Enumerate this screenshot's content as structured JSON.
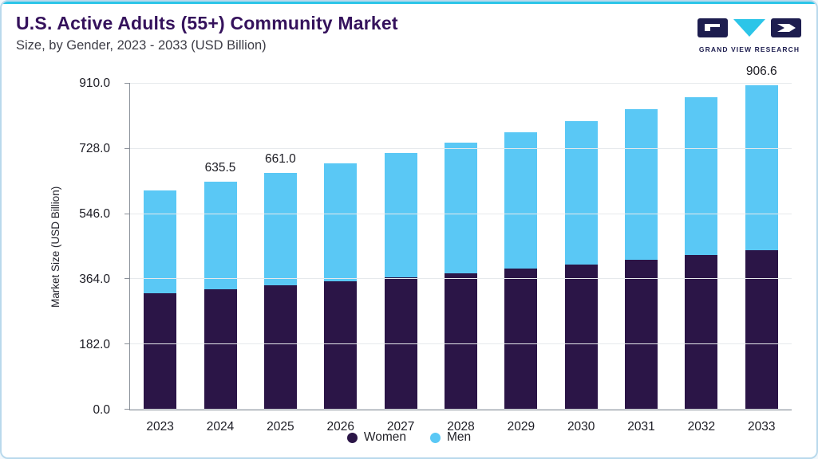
{
  "header": {
    "title": "U.S. Active Adults (55+) Community Market",
    "subtitle": "Size, by Gender, 2023 - 2033 (USD Billion)",
    "logo_text": "GRAND VIEW RESEARCH"
  },
  "colors": {
    "accent_line": "#2cc5e8",
    "card_border": "#b9d9ec",
    "title_text": "#35125c",
    "women_bar": "#2b1547",
    "men_bar": "#5ac8f5"
  },
  "chart_data": {
    "type": "bar",
    "stacked": true,
    "title": "U.S. Active Adults (55+) Community Market Size, by Gender, 2023 - 2033 (USD Billion)",
    "xlabel": "",
    "ylabel": "Market Size (USD Billion)",
    "categories": [
      "2023",
      "2024",
      "2025",
      "2026",
      "2027",
      "2028",
      "2029",
      "2030",
      "2031",
      "2032",
      "2033"
    ],
    "series": [
      {
        "name": "Women",
        "color": "#2b1547",
        "values": [
          324.0,
          336.0,
          348.0,
          359.0,
          370.0,
          381.0,
          393.0,
          406.0,
          419.0,
          432.0,
          446.0
        ]
      },
      {
        "name": "Men",
        "color": "#5ac8f5",
        "values": [
          287.0,
          299.5,
          313.0,
          329.0,
          346.0,
          364.0,
          382.0,
          400.0,
          419.0,
          440.0,
          460.6
        ]
      }
    ],
    "totals": [
      611.0,
      635.5,
      661.0,
      688.0,
      716.0,
      745.0,
      775.0,
      806.0,
      838.0,
      872.0,
      906.6
    ],
    "total_labels": [
      "",
      "635.5",
      "661.0",
      "",
      "",
      "",
      "",
      "",
      "",
      "",
      "906.6"
    ],
    "yticks": [
      0,
      182,
      364,
      546,
      728,
      910
    ],
    "ytick_labels": [
      "0.0",
      "182.0",
      "364.0",
      "546.0",
      "728.0",
      "910.0"
    ],
    "ylim": [
      0,
      910
    ],
    "grid": true,
    "legend_position": "bottom"
  }
}
